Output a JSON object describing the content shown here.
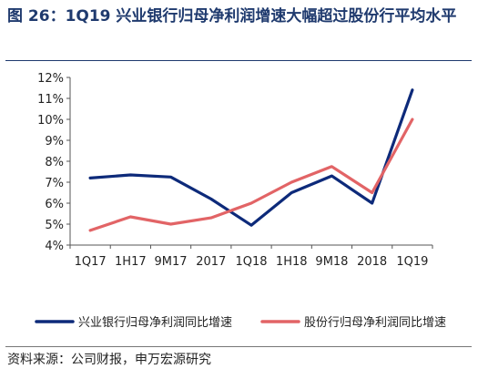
{
  "title": "图 26：1Q19 兴业银行归母净利润增速大幅超过股份行平均水平",
  "source": "资料来源：公司财报，申万宏源研究",
  "colors": {
    "title": "#1f3a6e",
    "series1": "#0d2a7a",
    "series2": "#e26466"
  },
  "chart_data": {
    "type": "line",
    "categories": [
      "1Q17",
      "1H17",
      "9M17",
      "2017",
      "1Q18",
      "1H18",
      "9M18",
      "2018",
      "1Q19"
    ],
    "series": [
      {
        "name": "兴业银行归母净利润同比增速",
        "values": [
          7.2,
          7.35,
          7.25,
          6.2,
          4.95,
          6.5,
          7.3,
          6.0,
          11.4
        ]
      },
      {
        "name": "股份行归母净利润同比增速",
        "values": [
          4.7,
          5.35,
          5.0,
          5.3,
          6.0,
          7.0,
          7.75,
          6.5,
          10.0
        ]
      }
    ],
    "y_ticks": [
      "4%",
      "5%",
      "6%",
      "7%",
      "8%",
      "9%",
      "10%",
      "11%",
      "12%"
    ],
    "ylim": [
      4,
      12
    ],
    "legend_position": "bottom",
    "grid": false
  }
}
